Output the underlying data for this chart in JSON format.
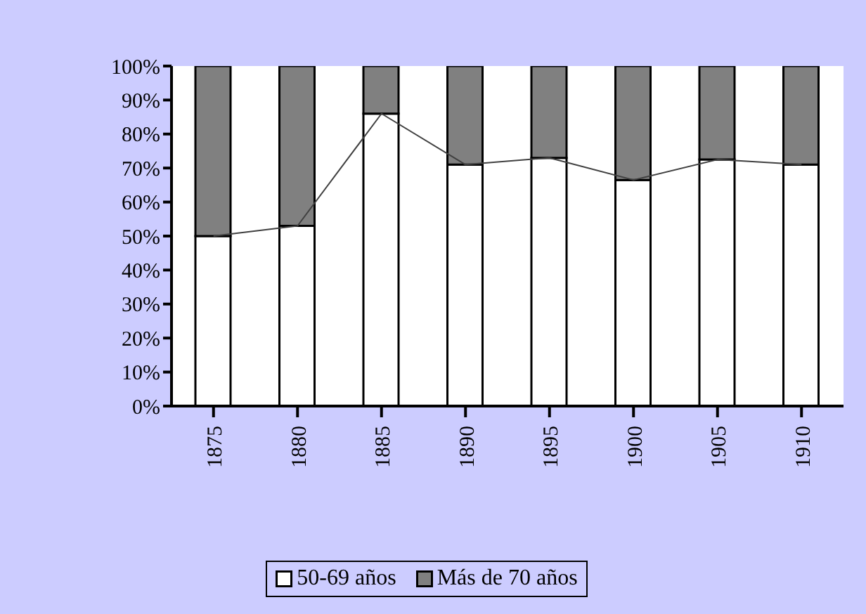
{
  "chart_data": {
    "type": "bar",
    "stacked": true,
    "categories": [
      "1875",
      "1880",
      "1885",
      "1890",
      "1895",
      "1900",
      "1905",
      "1910"
    ],
    "series": [
      {
        "name": "50-69 años",
        "color": "#ffffff",
        "values": [
          50,
          53,
          86,
          71,
          73,
          66.5,
          72.5,
          71
        ]
      },
      {
        "name": "Más de 70 años",
        "color": "#808080",
        "values": [
          50,
          47,
          14,
          29,
          27,
          33.5,
          27.5,
          29
        ]
      },
      {
        "type": "line",
        "color": "#404040",
        "values": [
          50,
          53,
          86,
          71,
          73,
          66.5,
          72.5,
          71
        ]
      }
    ],
    "ylim": [
      0,
      100
    ],
    "yticks": [
      {
        "value": 0,
        "label": "0%"
      },
      {
        "value": 10,
        "label": "10%"
      },
      {
        "value": 20,
        "label": "20%"
      },
      {
        "value": 30,
        "label": "30%"
      },
      {
        "value": 40,
        "label": "40%"
      },
      {
        "value": 50,
        "label": "50%"
      },
      {
        "value": 60,
        "label": "60%"
      },
      {
        "value": 70,
        "label": "70%"
      },
      {
        "value": 80,
        "label": "80%"
      },
      {
        "value": 90,
        "label": "90%"
      },
      {
        "value": 100,
        "label": "100%"
      }
    ],
    "grid": false,
    "legend": "bottom"
  }
}
